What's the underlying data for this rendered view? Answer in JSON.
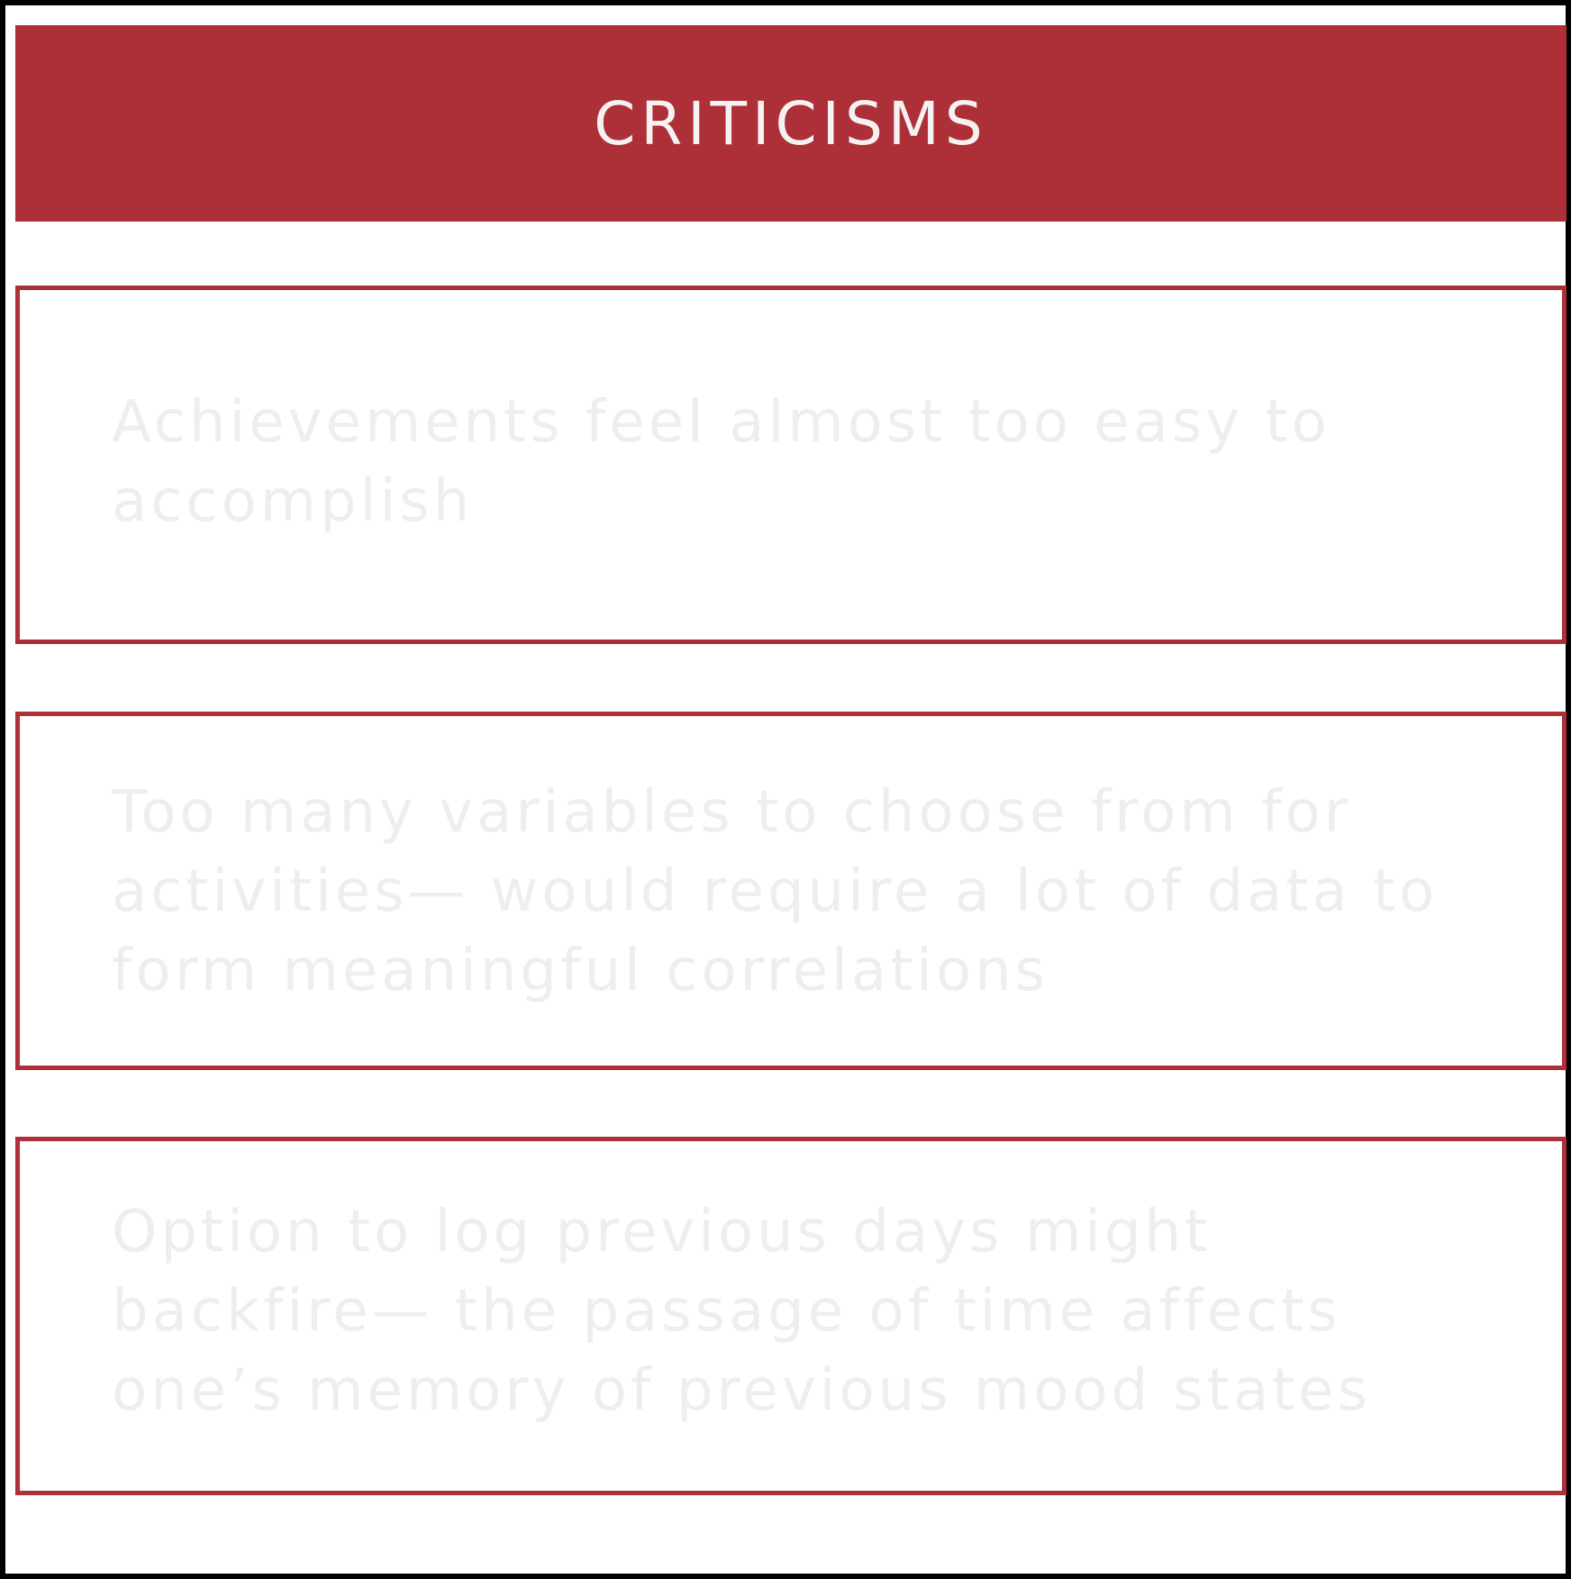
{
  "header": {
    "title": "CRITICISMS"
  },
  "criticisms": [
    {
      "text": "Achievements feel almost too easy to accomplish"
    },
    {
      "text": "Too many variables to choose from for activities— would require a lot of data to form meaningful correlations"
    },
    {
      "text": "Option to log previous days might backfire— the passage of time affects one’s memory of previous mood states"
    }
  ],
  "colors": {
    "accent": "#ad2f38",
    "header_text": "#f7f2f2",
    "card_text": "#eeeeee",
    "frame_border": "#000000"
  }
}
